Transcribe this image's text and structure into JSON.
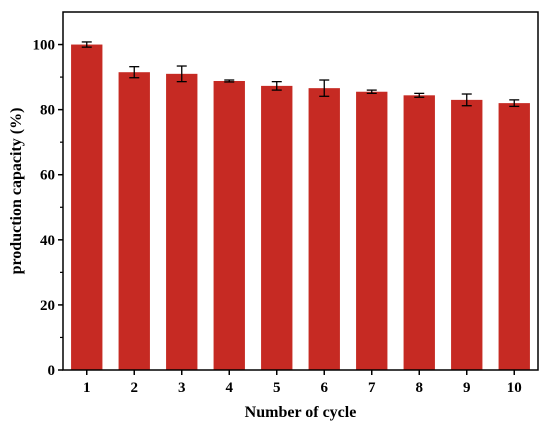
{
  "chart_data": {
    "type": "bar",
    "categories": [
      "1",
      "2",
      "3",
      "4",
      "5",
      "6",
      "7",
      "8",
      "9",
      "10"
    ],
    "values": [
      100.0,
      91.5,
      91.0,
      88.8,
      87.3,
      86.6,
      85.5,
      84.4,
      83.0,
      82.0
    ],
    "errors": [
      0.8,
      1.7,
      2.4,
      0.3,
      1.3,
      2.5,
      0.5,
      0.6,
      1.8,
      1.0
    ],
    "xlabel": "Number of cycle",
    "ylabel": "production capacity (%)",
    "ylim": [
      0,
      110
    ],
    "yticks": [
      0,
      20,
      40,
      60,
      80,
      100
    ],
    "bar_color": "#c62a23",
    "grid": false,
    "legend": "none"
  }
}
